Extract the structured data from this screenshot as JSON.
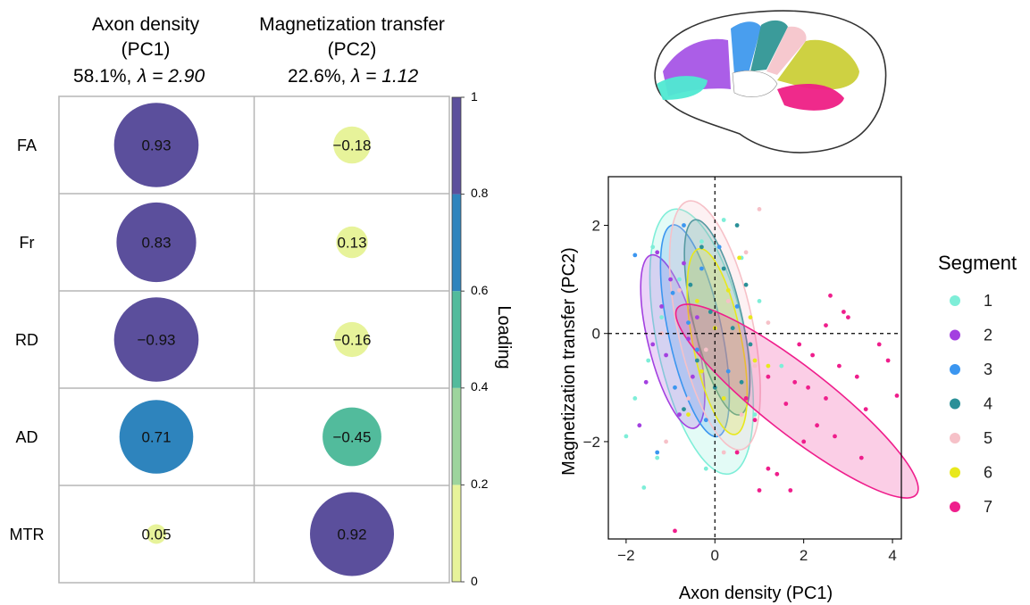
{
  "chart_data": [
    {
      "type": "heatmap",
      "columns": [
        {
          "title": "Axon density",
          "sub": "(PC1)",
          "stat_pct": "58.1%,",
          "stat_lambda": "λ = 2.90"
        },
        {
          "title": "Magnetization transfer",
          "sub": "(PC2)",
          "stat_pct": "22.6%,",
          "stat_lambda": "λ = 1.12"
        }
      ],
      "rows": [
        "FA",
        "Fr",
        "RD",
        "AD",
        "MTR"
      ],
      "values": [
        [
          0.93,
          -0.18
        ],
        [
          0.83,
          0.13
        ],
        [
          -0.93,
          -0.16
        ],
        [
          0.71,
          -0.45
        ],
        [
          0.05,
          0.92
        ]
      ],
      "value_labels": [
        [
          "0.93",
          "−0.18"
        ],
        [
          "0.83",
          "0.13"
        ],
        [
          "−0.93",
          "−0.16"
        ],
        [
          "0.71",
          "−0.45"
        ],
        [
          "0.05",
          "0.92"
        ]
      ],
      "colorbar": {
        "title": "Loading",
        "ticks": [
          0,
          0.2,
          0.4,
          0.6,
          0.8,
          1
        ],
        "tick_labels": [
          "0",
          "0.2",
          "0.4",
          "0.6",
          "0.8",
          "1"
        ],
        "bins": [
          {
            "from": 0.0,
            "to": 0.2,
            "color": "#e7f39a"
          },
          {
            "from": 0.2,
            "to": 0.4,
            "color": "#9dd49d"
          },
          {
            "from": 0.4,
            "to": 0.6,
            "color": "#52bb9c"
          },
          {
            "from": 0.6,
            "to": 0.8,
            "color": "#2e84bd"
          },
          {
            "from": 0.8,
            "to": 1.0,
            "color": "#5b4f9c"
          }
        ]
      }
    },
    {
      "type": "scatter",
      "xlabel": "Axon density (PC1)",
      "ylabel": "Magnetization transfer (PC2)",
      "xlim": [
        -2.4,
        4.2
      ],
      "ylim": [
        -3.8,
        2.9
      ],
      "xticks": [
        -2,
        0,
        2,
        4
      ],
      "xtick_labels": [
        "−2",
        "0",
        "2",
        "4"
      ],
      "yticks": [
        -2,
        0,
        2
      ],
      "ytick_labels": [
        "−2",
        "0",
        "2"
      ],
      "reference_lines": {
        "x": 0,
        "y": 0,
        "style": "dashed"
      },
      "legend_title": "Segment",
      "legend_position": "right",
      "series": [
        {
          "name": "1",
          "color": "#7eeed8",
          "ellipse": {
            "center": [
              -0.3,
              -0.15
            ],
            "semi_axes": [
              1.0,
              2.5
            ],
            "tilt_deg": -12
          },
          "points": [
            [
              -1.6,
              -2.85
            ],
            [
              -2.0,
              -1.9
            ],
            [
              -1.8,
              -1.2
            ],
            [
              -1.5,
              -0.5
            ],
            [
              -1.2,
              0.3
            ],
            [
              -0.8,
              1.0
            ],
            [
              -0.3,
              1.7
            ],
            [
              0.2,
              2.1
            ],
            [
              1.0,
              0.6
            ],
            [
              1.5,
              -0.6
            ],
            [
              -0.2,
              -2.5
            ],
            [
              -1.3,
              -2.3
            ],
            [
              0.6,
              1.4
            ],
            [
              -1.4,
              1.6
            ],
            [
              0.9,
              -1.5
            ]
          ]
        },
        {
          "name": "2",
          "color": "#a340e0",
          "ellipse": {
            "center": [
              -0.95,
              -0.15
            ],
            "semi_axes": [
              0.55,
              1.65
            ],
            "tilt_deg": -14
          },
          "points": [
            [
              -1.7,
              -1.7
            ],
            [
              -1.55,
              -0.9
            ],
            [
              -1.4,
              -0.2
            ],
            [
              -1.2,
              0.5
            ],
            [
              -1.0,
              1.0
            ],
            [
              -0.7,
              1.3
            ],
            [
              -0.5,
              -0.8
            ],
            [
              -0.8,
              -1.5
            ],
            [
              -1.3,
              1.5
            ],
            [
              -0.4,
              0.3
            ],
            [
              -1.1,
              -0.4
            ],
            [
              -0.6,
              -0.1
            ]
          ]
        },
        {
          "name": "3",
          "color": "#3b96f0",
          "ellipse": {
            "center": [
              -0.45,
              0.05
            ],
            "semi_axes": [
              0.6,
              2.0
            ],
            "tilt_deg": -12
          },
          "points": [
            [
              -1.8,
              1.45
            ],
            [
              -1.3,
              -2.2
            ],
            [
              -0.9,
              -1.0
            ],
            [
              -0.6,
              0.2
            ],
            [
              -0.3,
              1.2
            ],
            [
              0.1,
              1.6
            ],
            [
              -0.2,
              -1.6
            ],
            [
              0.3,
              -0.7
            ],
            [
              0.5,
              0.5
            ],
            [
              -0.7,
              2.0
            ],
            [
              -0.4,
              -0.3
            ],
            [
              -0.95,
              0.75
            ]
          ]
        },
        {
          "name": "4",
          "color": "#2a9098",
          "ellipse": {
            "center": [
              0.05,
              0.3
            ],
            "semi_axes": [
              0.55,
              1.85
            ],
            "tilt_deg": -13
          },
          "points": [
            [
              -0.7,
              -1.4
            ],
            [
              -0.4,
              -0.5
            ],
            [
              -0.1,
              0.4
            ],
            [
              0.2,
              1.2
            ],
            [
              0.5,
              2.0
            ],
            [
              0.7,
              0.9
            ],
            [
              0.8,
              -0.2
            ],
            [
              0.0,
              -1.0
            ],
            [
              0.4,
              0.1
            ],
            [
              -0.3,
              1.6
            ],
            [
              0.6,
              -0.9
            ],
            [
              -0.55,
              0.9
            ]
          ]
        },
        {
          "name": "5",
          "color": "#f6c1c8",
          "ellipse": {
            "center": [
              0.0,
              0.15
            ],
            "semi_axes": [
              0.85,
              2.35
            ],
            "tilt_deg": -12
          },
          "points": [
            [
              -1.1,
              -2.0
            ],
            [
              -0.6,
              -1.2
            ],
            [
              -0.2,
              -0.3
            ],
            [
              0.3,
              0.6
            ],
            [
              0.7,
              1.5
            ],
            [
              1.0,
              2.3
            ],
            [
              0.6,
              -1.5
            ],
            [
              -0.8,
              0.8
            ],
            [
              1.2,
              0.2
            ],
            [
              0.2,
              -2.2
            ],
            [
              -1.2,
              0.0
            ],
            [
              0.9,
              -0.6
            ]
          ]
        },
        {
          "name": "6",
          "color": "#e8e81c",
          "ellipse": {
            "center": [
              0.05,
              -0.15
            ],
            "semi_axes": [
              0.55,
              1.75
            ],
            "tilt_deg": -11
          },
          "points": [
            [
              -0.6,
              -1.5
            ],
            [
              -0.3,
              -0.7
            ],
            [
              0.0,
              0.1
            ],
            [
              0.3,
              0.8
            ],
            [
              0.55,
              1.4
            ],
            [
              0.8,
              0.3
            ],
            [
              1.2,
              -0.6
            ],
            [
              0.9,
              -0.5
            ],
            [
              -0.4,
              0.6
            ],
            [
              0.2,
              -1.2
            ]
          ]
        },
        {
          "name": "7",
          "color": "#ef1e8c",
          "ellipse": {
            "center": [
              1.85,
              -1.25
            ],
            "semi_axes": [
              0.75,
              2.8
            ],
            "tilt_deg": -52
          },
          "points": [
            [
              -0.9,
              -3.65
            ],
            [
              0.5,
              -2.2
            ],
            [
              0.9,
              -1.6
            ],
            [
              1.2,
              -2.5
            ],
            [
              1.6,
              -1.3
            ],
            [
              1.8,
              -0.9
            ],
            [
              2.0,
              -2.0
            ],
            [
              2.2,
              -0.4
            ],
            [
              2.5,
              0.15
            ],
            [
              2.5,
              -1.2
            ],
            [
              2.8,
              -0.6
            ],
            [
              3.0,
              0.3
            ],
            [
              3.2,
              -0.8
            ],
            [
              3.4,
              -1.4
            ],
            [
              3.7,
              -0.2
            ],
            [
              3.9,
              -0.5
            ],
            [
              4.1,
              -1.15
            ],
            [
              2.6,
              0.7
            ],
            [
              2.9,
              0.4
            ],
            [
              1.0,
              -2.9
            ],
            [
              1.4,
              -2.6
            ],
            [
              1.7,
              -2.9
            ],
            [
              2.3,
              -1.7
            ],
            [
              0.7,
              -1.2
            ],
            [
              1.9,
              -0.2
            ],
            [
              3.3,
              -2.3
            ],
            [
              2.1,
              -1.0
            ],
            [
              2.7,
              -1.9
            ],
            [
              1.2,
              -0.8
            ]
          ]
        }
      ]
    }
  ]
}
